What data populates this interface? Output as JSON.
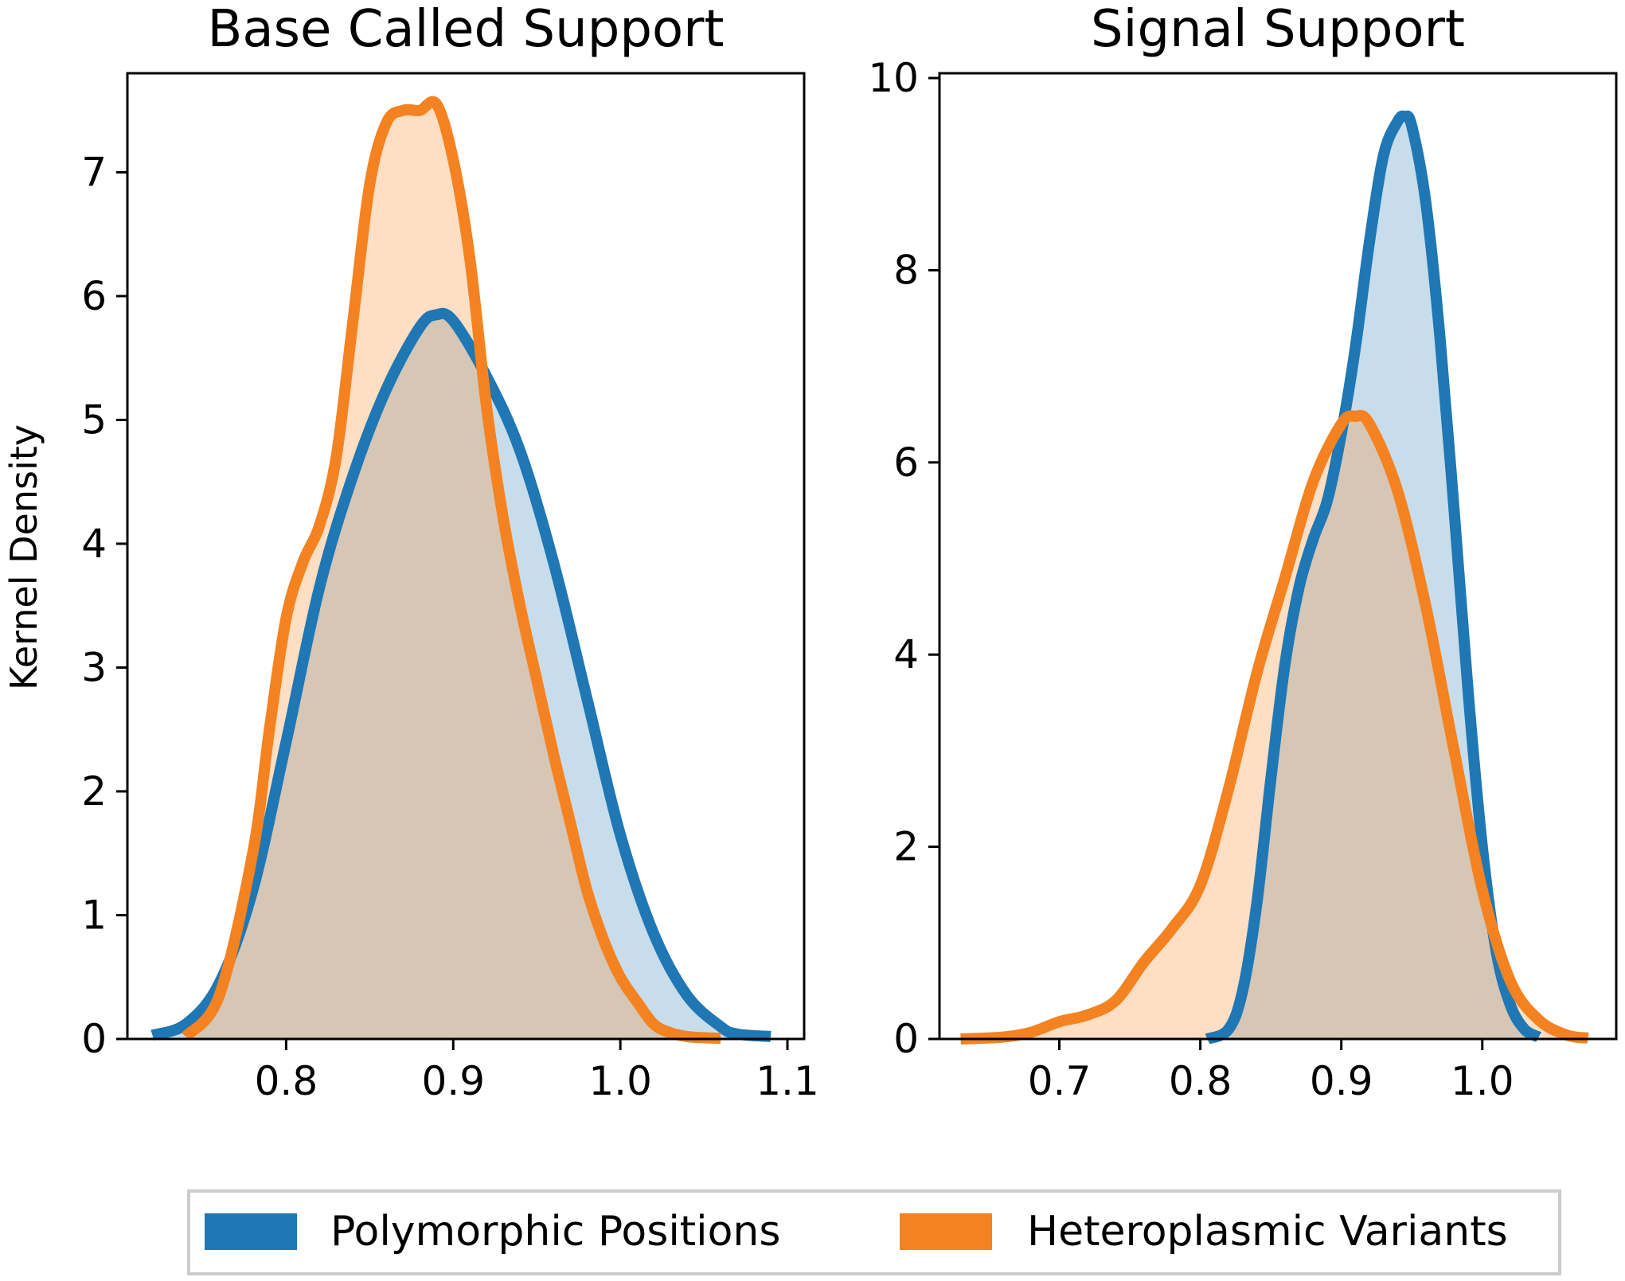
{
  "chart_data": [
    {
      "type": "area",
      "title": "Base Called Support",
      "xlabel": "",
      "ylabel": "Kernel Density",
      "xlim": [
        0.705,
        1.11
      ],
      "ylim": [
        0,
        7.8
      ],
      "xticks": [
        0.8,
        0.9,
        1.0,
        1.1
      ],
      "xtick_labels": [
        "0.8",
        "0.9",
        "1.0",
        "1.1"
      ],
      "yticks": [
        0,
        1,
        2,
        3,
        4,
        5,
        6,
        7
      ],
      "ytick_labels": [
        "0",
        "1",
        "2",
        "3",
        "4",
        "5",
        "6",
        "7"
      ],
      "series": [
        {
          "name": "Polymorphic Positions",
          "x": [
            0.72,
            0.74,
            0.76,
            0.78,
            0.8,
            0.82,
            0.84,
            0.86,
            0.88,
            0.89,
            0.9,
            0.92,
            0.94,
            0.96,
            0.98,
            1.0,
            1.02,
            1.04,
            1.06,
            1.07,
            1.09
          ],
          "values": [
            0.03,
            0.12,
            0.45,
            1.2,
            2.4,
            3.65,
            4.55,
            5.25,
            5.75,
            5.85,
            5.8,
            5.35,
            4.75,
            3.85,
            2.75,
            1.65,
            0.85,
            0.35,
            0.1,
            0.04,
            0.02
          ]
        },
        {
          "name": "Heteroplasmic Variants",
          "x": [
            0.74,
            0.76,
            0.78,
            0.79,
            0.8,
            0.81,
            0.82,
            0.83,
            0.84,
            0.85,
            0.86,
            0.87,
            0.88,
            0.89,
            0.9,
            0.91,
            0.92,
            0.93,
            0.94,
            0.95,
            0.96,
            0.97,
            0.98,
            0.99,
            1.0,
            1.01,
            1.02,
            1.03,
            1.04,
            1.05,
            1.06
          ],
          "values": [
            0.02,
            0.35,
            1.5,
            2.5,
            3.4,
            3.85,
            4.15,
            4.7,
            5.8,
            6.9,
            7.4,
            7.5,
            7.5,
            7.55,
            7.1,
            6.3,
            5.1,
            4.2,
            3.5,
            2.9,
            2.3,
            1.75,
            1.2,
            0.8,
            0.5,
            0.3,
            0.12,
            0.05,
            0.02,
            0.01,
            0.005
          ]
        }
      ]
    },
    {
      "type": "area",
      "title": "Signal Support",
      "xlabel": "",
      "ylabel": "",
      "xlim": [
        0.615,
        1.095
      ],
      "ylim": [
        0,
        10.05
      ],
      "xticks": [
        0.7,
        0.8,
        0.9,
        1.0
      ],
      "xtick_labels": [
        "0.7",
        "0.8",
        "0.9",
        "1.0"
      ],
      "yticks": [
        0,
        2,
        4,
        6,
        8,
        10
      ],
      "ytick_labels": [
        "0",
        "2",
        "4",
        "6",
        "8",
        "10"
      ],
      "series": [
        {
          "name": "Polymorphic Positions",
          "x": [
            0.805,
            0.82,
            0.83,
            0.84,
            0.85,
            0.86,
            0.87,
            0.88,
            0.89,
            0.9,
            0.91,
            0.92,
            0.93,
            0.94,
            0.945,
            0.95,
            0.96,
            0.97,
            0.98,
            0.99,
            1.0,
            1.01,
            1.02,
            1.03,
            1.04
          ],
          "values": [
            0.0,
            0.1,
            0.5,
            1.4,
            2.7,
            3.9,
            4.7,
            5.2,
            5.6,
            6.3,
            7.2,
            8.3,
            9.2,
            9.55,
            9.6,
            9.5,
            8.7,
            7.3,
            5.5,
            3.6,
            2.0,
            0.9,
            0.35,
            0.1,
            0.02
          ]
        },
        {
          "name": "Heteroplasmic Variants",
          "x": [
            0.63,
            0.66,
            0.68,
            0.7,
            0.72,
            0.74,
            0.76,
            0.78,
            0.8,
            0.82,
            0.84,
            0.86,
            0.88,
            0.9,
            0.91,
            0.92,
            0.94,
            0.96,
            0.98,
            1.0,
            1.02,
            1.04,
            1.06,
            1.075
          ],
          "values": [
            0.0,
            0.02,
            0.07,
            0.18,
            0.25,
            0.4,
            0.8,
            1.15,
            1.6,
            2.6,
            3.8,
            4.8,
            5.8,
            6.4,
            6.48,
            6.4,
            5.7,
            4.5,
            3.0,
            1.55,
            0.6,
            0.2,
            0.04,
            0.01
          ]
        }
      ]
    }
  ],
  "legend": {
    "placement": "bottom-center",
    "items": [
      {
        "label": "Polymorphic Positions",
        "color": "#1f77b4"
      },
      {
        "label": "Heteroplasmic Variants",
        "color": "#f58220"
      }
    ]
  },
  "colors": {
    "polymorphic": "#1f77b4",
    "heteroplasmic": "#f58220",
    "polymorphic_fill": "rgba(31,119,180,0.25)",
    "heteroplasmic_fill": "rgba(255,140,40,0.28)"
  }
}
